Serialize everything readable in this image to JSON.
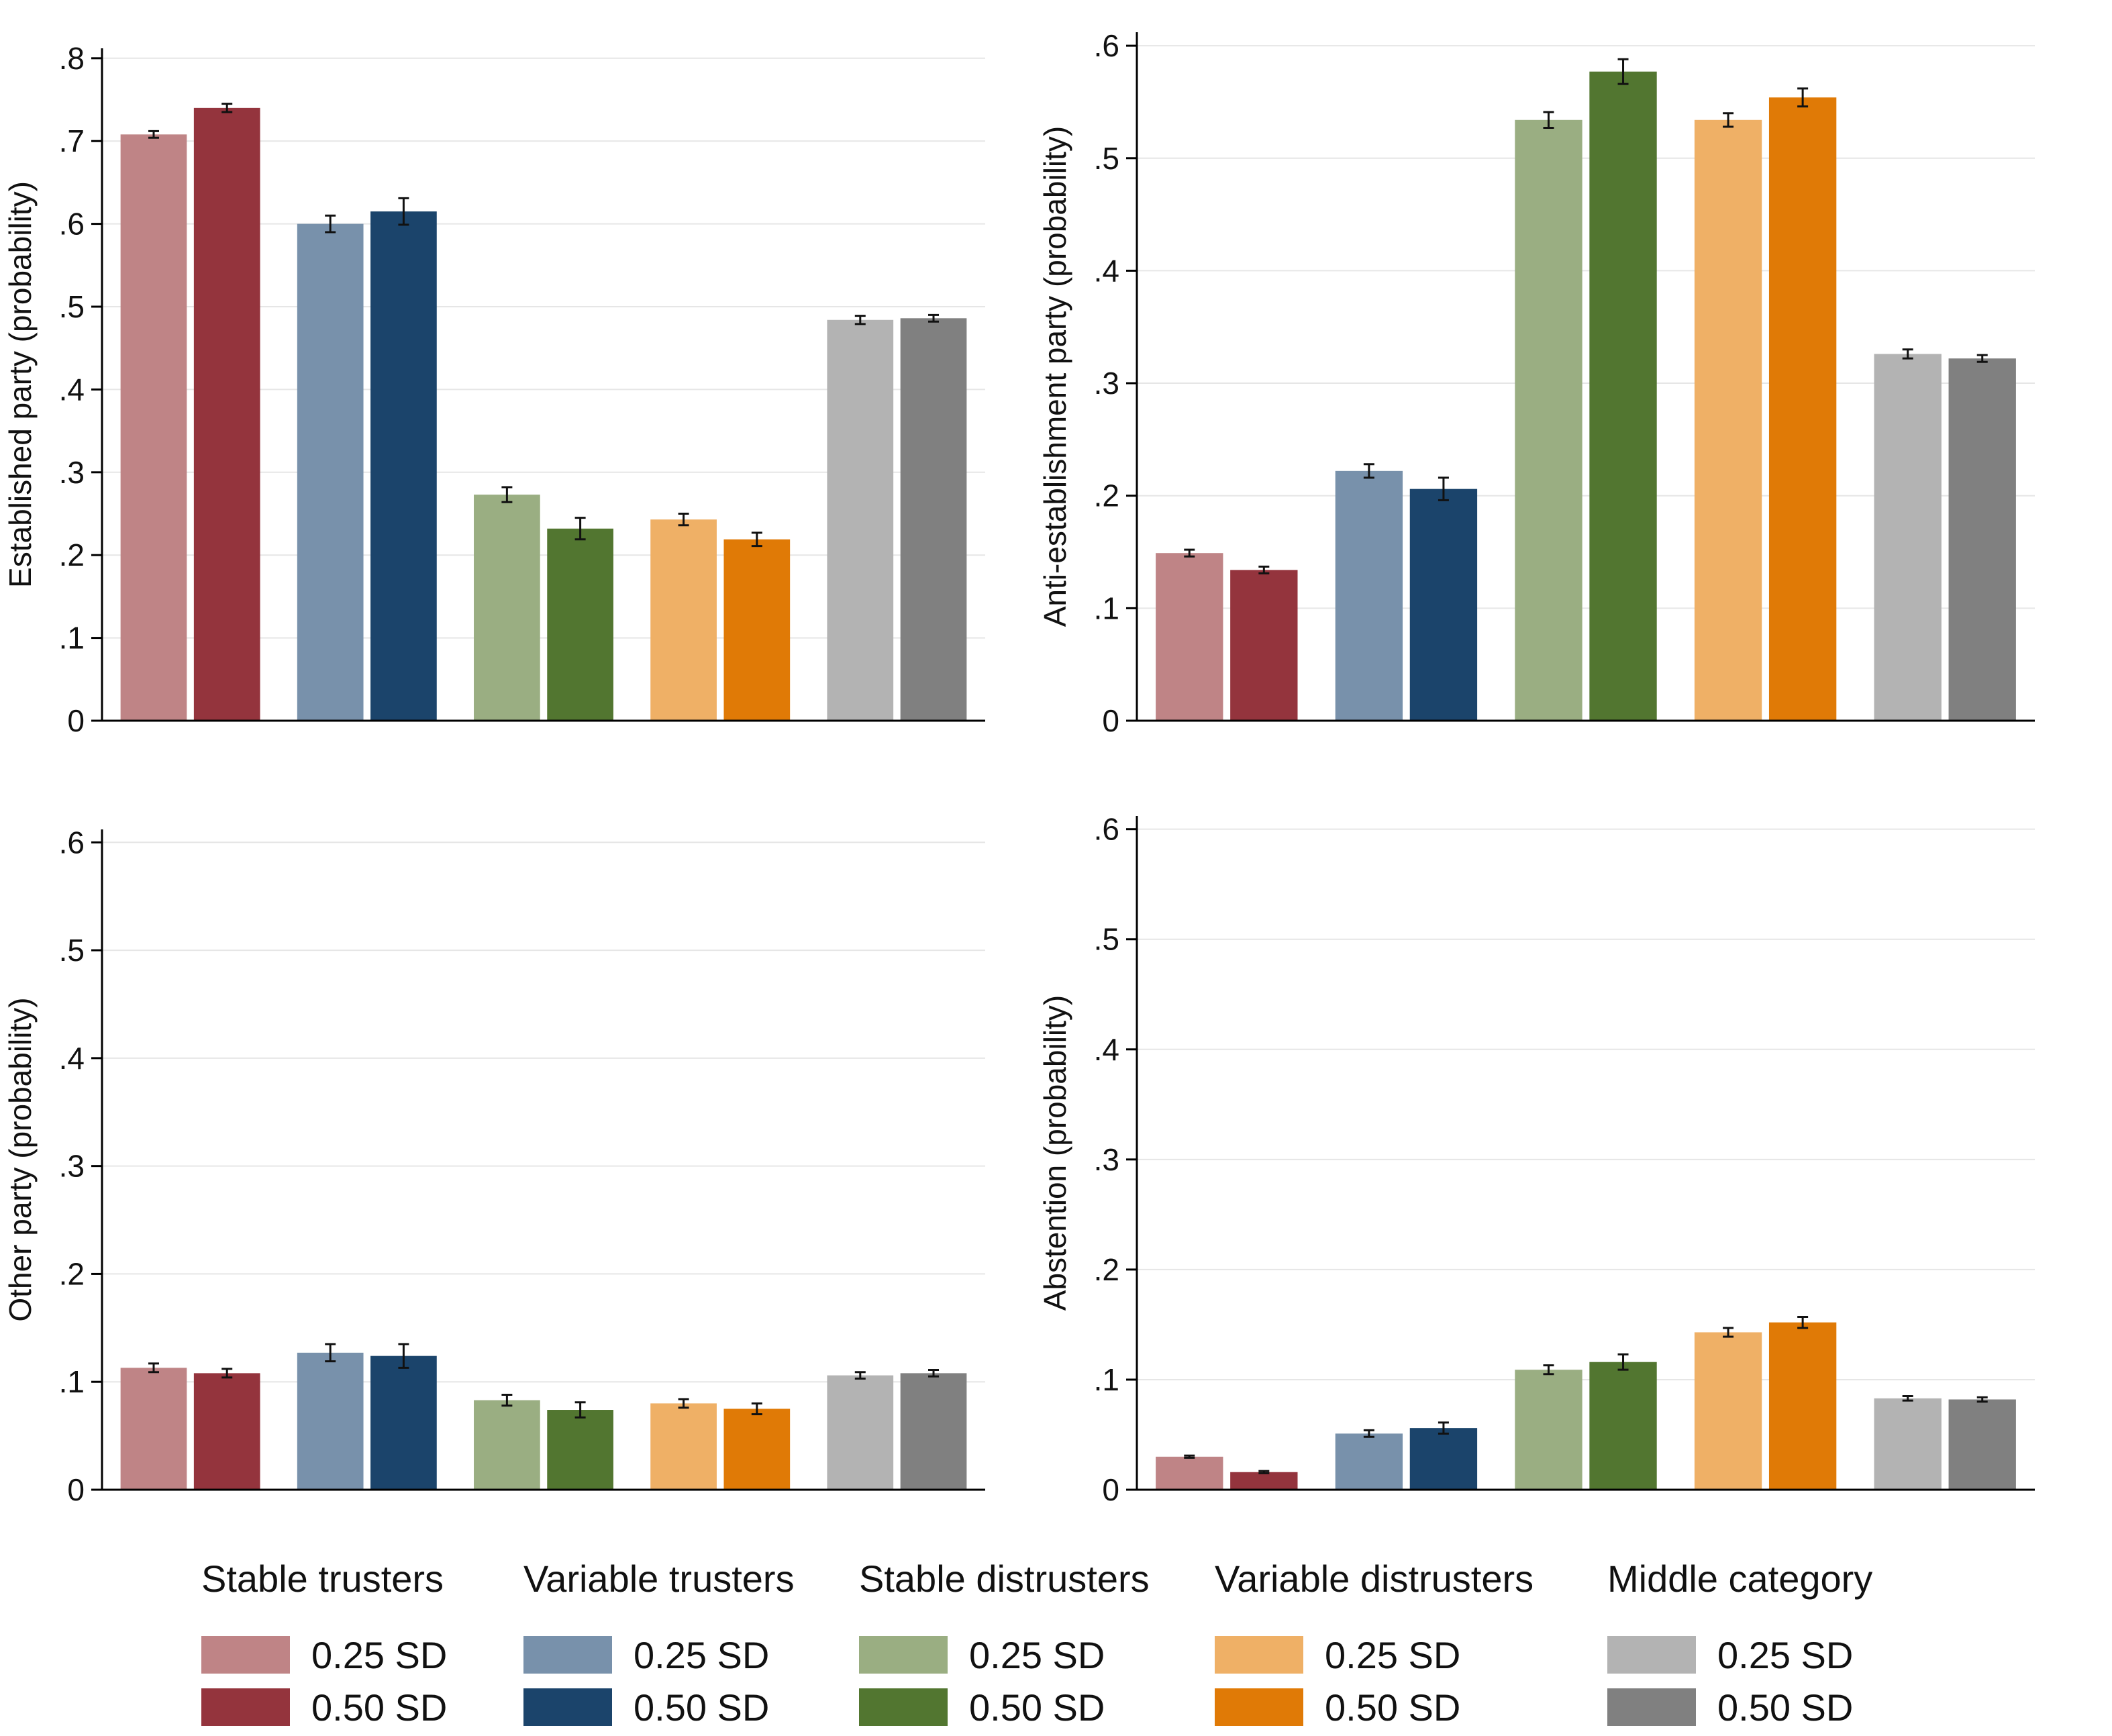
{
  "groups": [
    {
      "name": "Stable trusters",
      "colors": [
        "#bf8486",
        "#94343d"
      ]
    },
    {
      "name": "Variable trusters",
      "colors": [
        "#7891ab",
        "#1b446b"
      ]
    },
    {
      "name": "Stable distrusters",
      "colors": [
        "#9aae82",
        "#527630"
      ]
    },
    {
      "name": "Variable distrusters",
      "colors": [
        "#efb066",
        "#e07a06"
      ]
    },
    {
      "name": "Middle category",
      "colors": [
        "#b3b3b3",
        "#808080"
      ]
    }
  ],
  "legend_labels": [
    "0.25 SD",
    "0.50 SD"
  ],
  "chart_data": [
    {
      "type": "bar",
      "ylabel": "Established party (probability)",
      "ylim": [
        0,
        0.8
      ],
      "yticks": [
        0,
        0.1,
        0.2,
        0.3,
        0.4,
        0.5,
        0.6,
        0.7,
        0.8
      ],
      "ytick_labels": [
        "0",
        ".1",
        ".2",
        ".3",
        ".4",
        ".5",
        ".6",
        ".7",
        ".8"
      ],
      "grid": true,
      "categories": [
        "Stable trusters",
        "Variable trusters",
        "Stable distrusters",
        "Variable distrusters",
        "Middle category"
      ],
      "series": [
        {
          "name": "0.25 SD",
          "values": [
            0.708,
            0.6,
            0.273,
            0.243,
            0.484
          ],
          "ci": [
            0.004,
            0.01,
            0.009,
            0.007,
            0.005
          ]
        },
        {
          "name": "0.50 SD",
          "values": [
            0.74,
            0.615,
            0.232,
            0.219,
            0.486
          ],
          "ci": [
            0.005,
            0.016,
            0.013,
            0.008,
            0.004
          ]
        }
      ]
    },
    {
      "type": "bar",
      "ylabel": "Anti-establishment party (probability)",
      "ylim": [
        0,
        0.6
      ],
      "yticks": [
        0,
        0.1,
        0.2,
        0.3,
        0.4,
        0.5,
        0.6
      ],
      "ytick_labels": [
        "0",
        ".1",
        ".2",
        ".3",
        ".4",
        ".5",
        ".6"
      ],
      "grid": true,
      "categories": [
        "Stable trusters",
        "Variable trusters",
        "Stable distrusters",
        "Variable distrusters",
        "Middle category"
      ],
      "series": [
        {
          "name": "0.25 SD",
          "values": [
            0.149,
            0.222,
            0.534,
            0.534,
            0.326
          ],
          "ci": [
            0.003,
            0.006,
            0.007,
            0.006,
            0.004
          ]
        },
        {
          "name": "0.50 SD",
          "values": [
            0.134,
            0.206,
            0.577,
            0.554,
            0.322
          ],
          "ci": [
            0.003,
            0.01,
            0.011,
            0.008,
            0.003
          ]
        }
      ]
    },
    {
      "type": "bar",
      "ylabel": "Other party (probability)",
      "ylim": [
        0,
        0.6
      ],
      "yticks": [
        0,
        0.1,
        0.2,
        0.3,
        0.4,
        0.5,
        0.6
      ],
      "ytick_labels": [
        "0",
        ".1",
        ".2",
        ".3",
        ".4",
        ".5",
        ".6"
      ],
      "grid": true,
      "categories": [
        "Stable trusters",
        "Variable trusters",
        "Stable distrusters",
        "Variable distrusters",
        "Middle category"
      ],
      "series": [
        {
          "name": "0.25 SD",
          "values": [
            0.113,
            0.127,
            0.083,
            0.08,
            0.106
          ],
          "ci": [
            0.004,
            0.008,
            0.005,
            0.004,
            0.003
          ]
        },
        {
          "name": "0.50 SD",
          "values": [
            0.108,
            0.124,
            0.074,
            0.075,
            0.108
          ],
          "ci": [
            0.004,
            0.011,
            0.007,
            0.005,
            0.003
          ]
        }
      ]
    },
    {
      "type": "bar",
      "ylabel": "Abstention (probability)",
      "ylim": [
        0,
        0.6
      ],
      "yticks": [
        0,
        0.1,
        0.2,
        0.3,
        0.4,
        0.5,
        0.6
      ],
      "ytick_labels": [
        "0",
        ".1",
        ".2",
        ".3",
        ".4",
        ".5",
        ".6"
      ],
      "grid": true,
      "categories": [
        "Stable trusters",
        "Variable trusters",
        "Stable distrusters",
        "Variable distrusters",
        "Middle category"
      ],
      "series": [
        {
          "name": "0.25 SD",
          "values": [
            0.03,
            0.051,
            0.109,
            0.143,
            0.083
          ],
          "ci": [
            0.001,
            0.003,
            0.004,
            0.004,
            0.002
          ]
        },
        {
          "name": "0.50 SD",
          "values": [
            0.016,
            0.056,
            0.116,
            0.152,
            0.082
          ],
          "ci": [
            0.001,
            0.005,
            0.007,
            0.005,
            0.002
          ]
        }
      ]
    }
  ]
}
